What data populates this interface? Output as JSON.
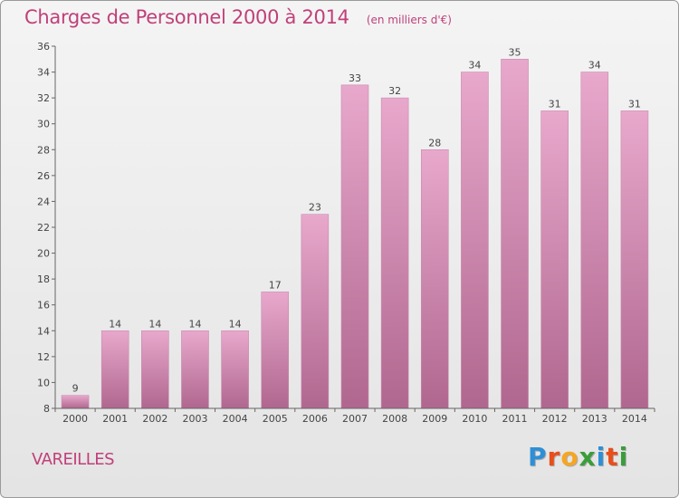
{
  "header": {
    "title": "Charges de Personnel 2000 à 2014",
    "subtitle": "(en milliers d'€)"
  },
  "footer": {
    "commune": "VAREILLES",
    "brand": "Proxiti",
    "brand_colors": [
      "#2f8fd6",
      "#e94e1b",
      "#f5a623",
      "#3a9d3a",
      "#2f8fd6",
      "#e94e1b",
      "#3a9d3a"
    ]
  },
  "colors": {
    "bar_top": "#e8a8cc",
    "bar_bottom": "#b0678f",
    "bar_edge": "#c98aae",
    "accent": "#c0407a"
  },
  "chart_data": {
    "type": "bar",
    "title": "Charges de Personnel 2000 à 2014",
    "subtitle": "(en milliers d'€)",
    "xlabel": "",
    "ylabel": "",
    "categories": [
      "2000",
      "2001",
      "2002",
      "2003",
      "2004",
      "2005",
      "2006",
      "2007",
      "2008",
      "2009",
      "2010",
      "2011",
      "2012",
      "2013",
      "2014"
    ],
    "values": [
      9,
      14,
      14,
      14,
      14,
      17,
      23,
      33,
      32,
      28,
      34,
      35,
      31,
      34,
      31
    ],
    "ylim": [
      8,
      36
    ],
    "yticks": [
      8,
      10,
      12,
      14,
      16,
      18,
      20,
      22,
      24,
      26,
      28,
      30,
      32,
      34,
      36
    ],
    "grid": false,
    "legend": "none"
  }
}
